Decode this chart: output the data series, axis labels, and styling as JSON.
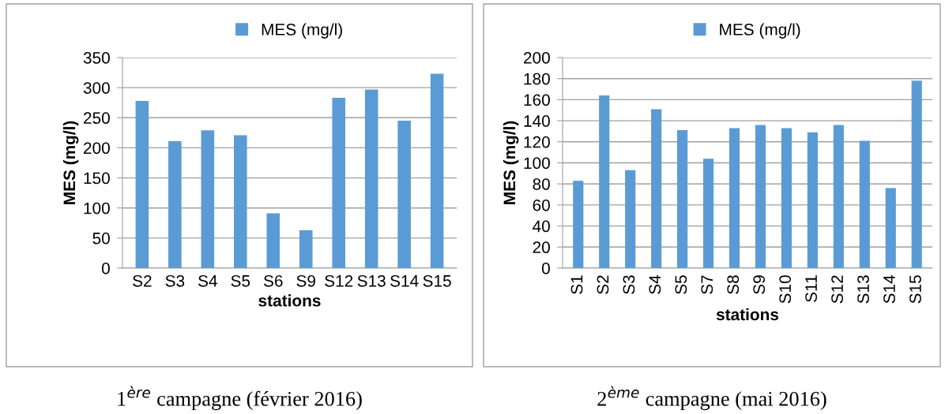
{
  "chart_data": [
    {
      "type": "bar",
      "xlabel": "stations",
      "ylabel": "MES (mg/l)",
      "categories": [
        "S2",
        "S3",
        "S4",
        "S5",
        "S6",
        "S9",
        "S12",
        "S13",
        "S14",
        "S15"
      ],
      "series": [
        {
          "name": "MES (mg/l)",
          "color": "#5b9bd5",
          "values": [
            278,
            211,
            229,
            221,
            91,
            63,
            283,
            297,
            245,
            323
          ]
        }
      ],
      "ylim": [
        0,
        350
      ],
      "yticks": [
        0,
        50,
        100,
        150,
        200,
        250,
        300,
        350
      ],
      "grid": "y",
      "legend": "top",
      "annotations": [
        "1$^{ère}$ campagne (février 2016)"
      ]
    },
    {
      "type": "bar",
      "xlabel": "stations",
      "ylabel": "MES (mg/l)",
      "categories": [
        "S1",
        "S2",
        "S3",
        "S4",
        "S5",
        "S7",
        "S8",
        "S9",
        "S10",
        "S11",
        "S12",
        "S13",
        "S14",
        "S15"
      ],
      "series": [
        {
          "name": "MES (mg/l)",
          "color": "#5b9bd5",
          "values": [
            83,
            164,
            93,
            151,
            131,
            104,
            133,
            136,
            133,
            129,
            136,
            121,
            76,
            178
          ]
        }
      ],
      "ylim": [
        0,
        200
      ],
      "yticks": [
        0,
        20,
        40,
        60,
        80,
        100,
        120,
        140,
        160,
        180,
        200
      ],
      "grid": "y",
      "legend": "top",
      "annotations": [
        "2$^{ème}$ campagne (mai 2016)"
      ]
    }
  ]
}
